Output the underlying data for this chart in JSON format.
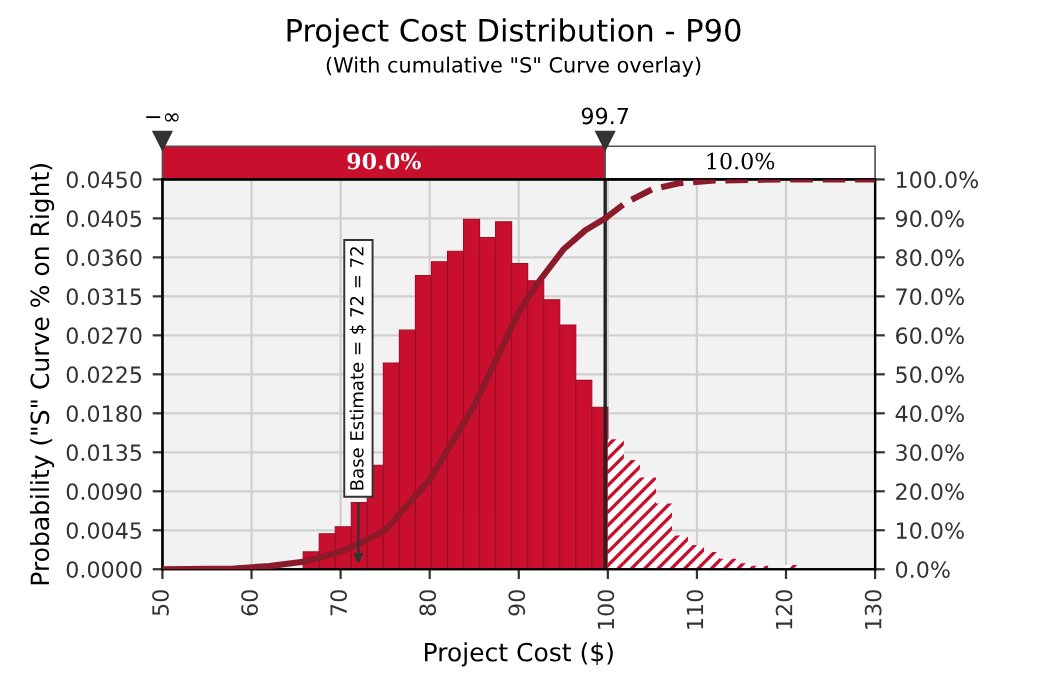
{
  "chart_data": {
    "type": "histogram",
    "title": "Project Cost Distribution - P90",
    "subtitle": "(With cumulative \"S\" Curve overlay)",
    "xlabel": "Project Cost ($)",
    "ylabel": "Probability (\"S\" Curve % on Right)",
    "bins": [
      56.8,
      58.6,
      60.4,
      62.2,
      64.0,
      65.8,
      67.6,
      69.4,
      71.2,
      73.0,
      74.8,
      76.6,
      78.4,
      80.2,
      82.0,
      83.8,
      85.6,
      87.4,
      89.2,
      91.0,
      92.8,
      94.6,
      96.4,
      98.2,
      100.0,
      101.8,
      103.6,
      105.4,
      107.2,
      109.0,
      110.8,
      112.6,
      114.4,
      116.2,
      118.0,
      119.8,
      121.6
    ],
    "values": [
      0.0001,
      0.0001,
      0.0002,
      null,
      null,
      0.002,
      0.0041,
      0.0049,
      0.0077,
      0.012,
      0.0238,
      0.0276,
      0.0339,
      0.0355,
      0.0367,
      0.0404,
      0.0383,
      0.0401,
      0.0353,
      0.0333,
      0.0311,
      0.0282,
      0.0218,
      0.0187,
      0.015,
      0.0126,
      0.0106,
      0.0076,
      0.0039,
      0.0028,
      0.002,
      0.0012,
      0.0007,
      0.0004,
      null,
      0.0005
    ],
    "color": "#c8102e",
    "series": [
      {
        "type": "line",
        "axis": "y2",
        "color": "#8b1a2b",
        "line_style": "solid",
        "x": [
          50,
          58,
          62,
          66,
          70,
          72,
          75,
          80,
          85,
          90,
          92,
          95,
          97.5,
          99.7
        ],
        "values": [
          0,
          0.2,
          0.8,
          2,
          4.5,
          6.5,
          10,
          23,
          42,
          66,
          73,
          82,
          87,
          90
        ]
      },
      {
        "type": "line",
        "axis": "y2",
        "color": "#8b1a2b",
        "line_style": "dashed",
        "x": [
          99.7,
          102,
          105,
          108,
          112,
          120,
          130
        ],
        "values": [
          90,
          94,
          97.5,
          99,
          99.7,
          100,
          100
        ]
      }
    ],
    "xlim": [
      50,
      130
    ],
    "xticks": [
      50,
      60,
      70,
      80,
      90,
      100,
      110,
      120,
      130
    ],
    "ylim": [
      0,
      0.045
    ],
    "yticks": [
      {
        "value": 0,
        "label": "0.0000"
      },
      {
        "value": 0.0045,
        "label": "0.0045"
      },
      {
        "value": 0.009,
        "label": "0.0090"
      },
      {
        "value": 0.0135,
        "label": "0.0135"
      },
      {
        "value": 0.018,
        "label": "0.0180"
      },
      {
        "value": 0.0225,
        "label": "0.0225"
      },
      {
        "value": 0.027,
        "label": "0.0270"
      },
      {
        "value": 0.0315,
        "label": "0.0315"
      },
      {
        "value": 0.036,
        "label": "0.0360"
      },
      {
        "value": 0.0405,
        "label": "0.0405"
      },
      {
        "value": 0.045,
        "label": "0.0450"
      }
    ],
    "y2lim": [
      0,
      100
    ],
    "y2ticks": [
      {
        "value": 0,
        "label": "0.0%"
      },
      {
        "value": 10,
        "label": "10.0%"
      },
      {
        "value": 20,
        "label": "20.0%"
      },
      {
        "value": 30,
        "label": "30.0%"
      },
      {
        "value": 40,
        "label": "40.0%"
      },
      {
        "value": 50,
        "label": "50.0%"
      },
      {
        "value": 60,
        "label": "60.0%"
      },
      {
        "value": 70,
        "label": "70.0%"
      },
      {
        "value": 80,
        "label": "80.0%"
      },
      {
        "value": 90,
        "label": "90.0%"
      },
      {
        "value": 100,
        "label": "100.0%"
      }
    ],
    "ref_lines": [
      {
        "axis": "x",
        "value": 99.7,
        "label": "99.7",
        "color": "#222222"
      }
    ],
    "annotations": [
      "−∞",
      "90.0%",
      "10.0%",
      {
        "text": "Base Estimate = $ 72 = 72",
        "x": 72,
        "y": 0
      }
    ],
    "grid": true
  }
}
